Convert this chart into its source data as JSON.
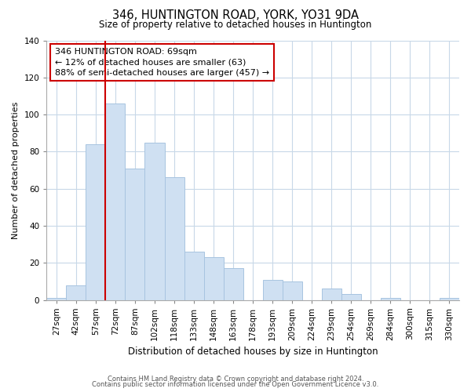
{
  "title": "346, HUNTINGTON ROAD, YORK, YO31 9DA",
  "subtitle": "Size of property relative to detached houses in Huntington",
  "xlabel": "Distribution of detached houses by size in Huntington",
  "ylabel": "Number of detached properties",
  "bar_labels": [
    "27sqm",
    "42sqm",
    "57sqm",
    "72sqm",
    "87sqm",
    "102sqm",
    "118sqm",
    "133sqm",
    "148sqm",
    "163sqm",
    "178sqm",
    "193sqm",
    "209sqm",
    "224sqm",
    "239sqm",
    "254sqm",
    "269sqm",
    "284sqm",
    "300sqm",
    "315sqm",
    "330sqm"
  ],
  "bar_values": [
    1,
    8,
    84,
    106,
    71,
    85,
    66,
    26,
    23,
    17,
    0,
    11,
    10,
    0,
    6,
    3,
    0,
    1,
    0,
    0,
    1
  ],
  "bar_color": "#cfe0f2",
  "bar_edge_color": "#a8c4e0",
  "vline_pos": 2.5,
  "vline_color": "#cc0000",
  "annotation_text": "346 HUNTINGTON ROAD: 69sqm\n← 12% of detached houses are smaller (63)\n88% of semi-detached houses are larger (457) →",
  "annotation_box_edge": "#cc0000",
  "ylim": [
    0,
    140
  ],
  "yticks": [
    0,
    20,
    40,
    60,
    80,
    100,
    120,
    140
  ],
  "footer_line1": "Contains HM Land Registry data © Crown copyright and database right 2024.",
  "footer_line2": "Contains public sector information licensed under the Open Government Licence v3.0.",
  "background_color": "#ffffff",
  "grid_color": "#c8d8e8"
}
